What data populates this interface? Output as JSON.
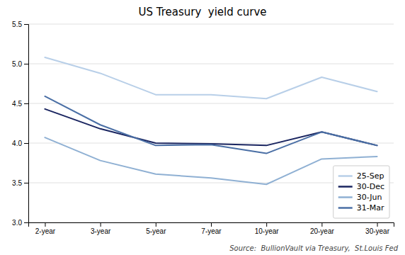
{
  "chart_data": {
    "type": "line",
    "title": "US Treasury  yield curve",
    "categories": [
      "2-year",
      "3-year",
      "5-year",
      "7-year",
      "10-year",
      "20-year",
      "30-year"
    ],
    "series": [
      {
        "name": "25-Sep",
        "color": "#b8cfe8",
        "values": [
          5.08,
          4.88,
          4.61,
          4.61,
          4.56,
          4.83,
          4.65
        ]
      },
      {
        "name": "30-Dec",
        "color": "#1a2560",
        "values": [
          4.43,
          4.18,
          4.0,
          3.99,
          3.97,
          4.14,
          3.97
        ]
      },
      {
        "name": "30-Jun",
        "color": "#8fb0d3",
        "values": [
          4.07,
          3.78,
          3.61,
          3.56,
          3.48,
          3.8,
          3.83
        ]
      },
      {
        "name": "31-Mar",
        "color": "#4a6fa5",
        "values": [
          4.59,
          4.23,
          3.97,
          3.98,
          3.87,
          4.14,
          3.97
        ]
      }
    ],
    "ylim": [
      3.0,
      5.5
    ],
    "yticks": [
      {
        "value": 3.0,
        "label": "3.0"
      },
      3.5,
      {
        "value": 4.0,
        "label": "4.0"
      },
      4.5,
      {
        "value": 5.0,
        "label": "5.0"
      },
      5.5
    ],
    "grid": true,
    "legend": "lower right",
    "source": "Source:  BullionVault via Treasury,  St.Louis Fed"
  }
}
